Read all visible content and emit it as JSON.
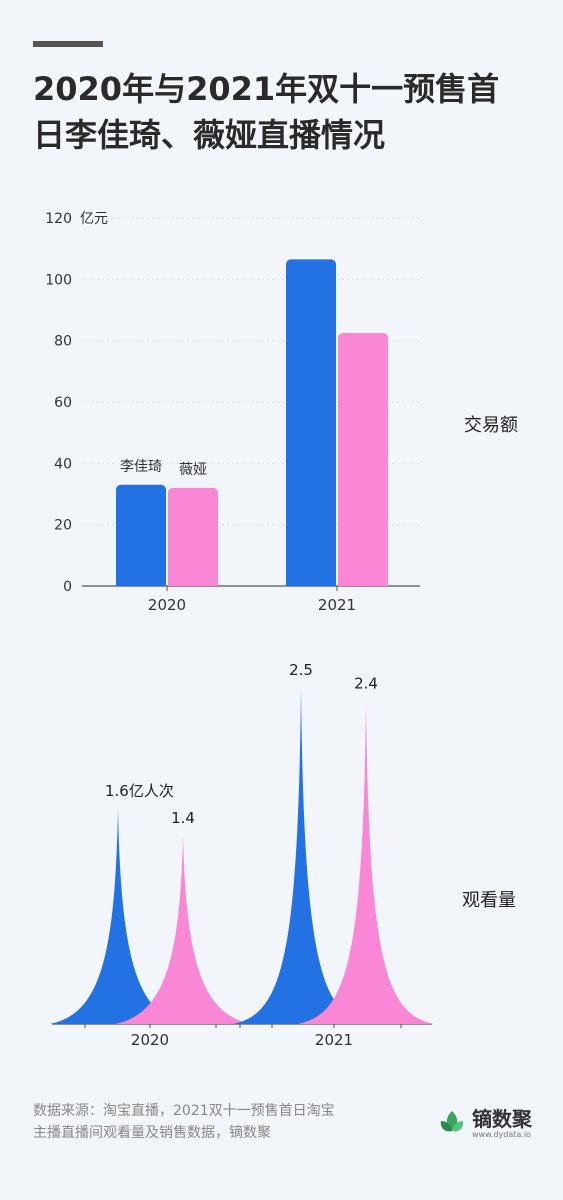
{
  "title_lines": [
    "2020年与2021年双十一预售首",
    "日李佳琦、薇娅直播情况"
  ],
  "colors": {
    "li_jiaqi": "#2272e4",
    "viya": "#f987d6",
    "axis": "#555555",
    "grid": "#dcdcdc"
  },
  "chart_data": [
    {
      "type": "bar",
      "categories": [
        "2020",
        "2021"
      ],
      "series": [
        {
          "name": "李佳琦",
          "values": [
            33,
            106.5
          ]
        },
        {
          "name": "薇娅",
          "values": [
            32,
            82.5
          ]
        }
      ],
      "ylim": [
        0,
        120
      ],
      "yticks": [
        "0",
        "20",
        "40",
        "60",
        "80",
        "100",
        "120"
      ],
      "ylabel": "亿元",
      "side_label": "交易额",
      "grid": true
    },
    {
      "type": "area",
      "categories": [
        "2020",
        "2021"
      ],
      "series": [
        {
          "name": "李佳琦",
          "values": [
            1.6,
            2.5
          ]
        },
        {
          "name": "薇娅",
          "values": [
            1.4,
            2.4
          ]
        }
      ],
      "data_labels": [
        "1.6亿人次",
        "1.4",
        "2.5",
        "2.4"
      ],
      "side_label": "观看量"
    }
  ],
  "footer": {
    "source_lines": [
      "数据来源：淘宝直播，2021双十一预售首日淘宝",
      "主播直播间观看量及销售数据，镝数聚"
    ],
    "brand_name": "镝数聚",
    "brand_url": "www.dydata.io",
    "brand_icon": "leaf-logo-icon"
  }
}
